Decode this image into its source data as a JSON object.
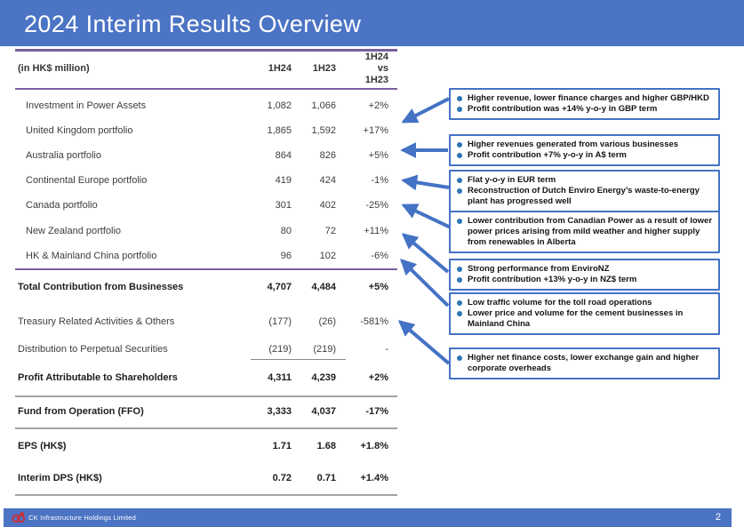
{
  "title": "2024 Interim Results Overview",
  "colors": {
    "accent_blue": "#4C74C4",
    "callout_border_blue": "#4472C4",
    "bullet_blue": "#2E75B6",
    "line_purple": "#7A5E9E",
    "logo_red": "#C9313D"
  },
  "table": {
    "unit_label": "(in HK$ million)",
    "col_1h24": "1H24",
    "col_1h23": "1H23",
    "col_change_lines": {
      "0": "1H24",
      "1": "vs",
      "2": "1H23"
    },
    "rows": [
      {
        "label": "Investment in Power Assets",
        "h24": "1,082",
        "h23": "1,066",
        "change": "+2%",
        "style": "item"
      },
      {
        "label": "United Kingdom portfolio",
        "h24": "1,865",
        "h23": "1,592",
        "change": "+17%",
        "style": "item"
      },
      {
        "label": "Australia portfolio",
        "h24": "864",
        "h23": "826",
        "change": "+5%",
        "style": "item"
      },
      {
        "label": "Continental Europe portfolio",
        "h24": "419",
        "h23": "424",
        "change": "-1%",
        "style": "item"
      },
      {
        "label": "Canada portfolio",
        "h24": "301",
        "h23": "402",
        "change": "-25%",
        "style": "item"
      },
      {
        "label": "New Zealand portfolio",
        "h24": "80",
        "h23": "72",
        "change": "+11%",
        "style": "item"
      },
      {
        "label": "HK & Mainland China portfolio",
        "h24": "96",
        "h23": "102",
        "change": "-6%",
        "style": "item"
      },
      {
        "label": "Total Contribution from Businesses",
        "h24": "4,707",
        "h23": "4,484",
        "change": "+5%",
        "style": "total"
      },
      {
        "label": "Treasury Related Activities & Others",
        "h24": "(177)",
        "h23": "(26)",
        "change": "-581%",
        "style": "normal"
      },
      {
        "label": "Distribution to Perpetual Securities",
        "h24": "(219)",
        "h23": "(219)",
        "change": "-",
        "style": "normal"
      },
      {
        "label": "Profit Attributable to Shareholders",
        "h24": "4,311",
        "h23": "4,239",
        "change": "+2%",
        "style": "total"
      },
      {
        "label": "Fund from Operation (FFO)",
        "h24": "3,333",
        "h23": "4,037",
        "change": "-17%",
        "style": "total"
      },
      {
        "label": "EPS (HK$)",
        "h24": "1.71",
        "h23": "1.68",
        "change": "+1.8%",
        "style": "total"
      },
      {
        "label": "Interim DPS (HK$)",
        "h24": "0.72",
        "h23": "0.71",
        "change": "+1.4%",
        "style": "total"
      }
    ]
  },
  "callouts": [
    {
      "bullets": [
        "Higher revenue, lower finance charges and higher GBP/HKD",
        "Profit contribution was +14% y-o-y in GBP term"
      ]
    },
    {
      "bullets": [
        "Higher revenues generated from various businesses",
        "Profit contribution +7%  y-o-y in A$ term"
      ]
    },
    {
      "bullets": [
        "Flat y-o-y in EUR term",
        "Reconstruction of Dutch Enviro Energy’s waste-to-energy plant has progressed well"
      ]
    },
    {
      "bullets": [
        "Lower contribution from Canadian Power as a result of lower power prices arising from mild weather and higher supply from renewables in Alberta"
      ]
    },
    {
      "bullets": [
        "Strong performance from EnviroNZ",
        "Profit contribution +13% y-o-y in NZ$ term"
      ]
    },
    {
      "bullets": [
        "Low traffic volume for the toll road operations",
        "Lower price and volume for the cement businesses in Mainland China"
      ]
    },
    {
      "bullets": [
        "Higher net finance costs, lower exchange gain and higher corporate overheads"
      ]
    }
  ],
  "footer": {
    "company": "CK Infrastructure Holdings Limited",
    "page": "2"
  }
}
